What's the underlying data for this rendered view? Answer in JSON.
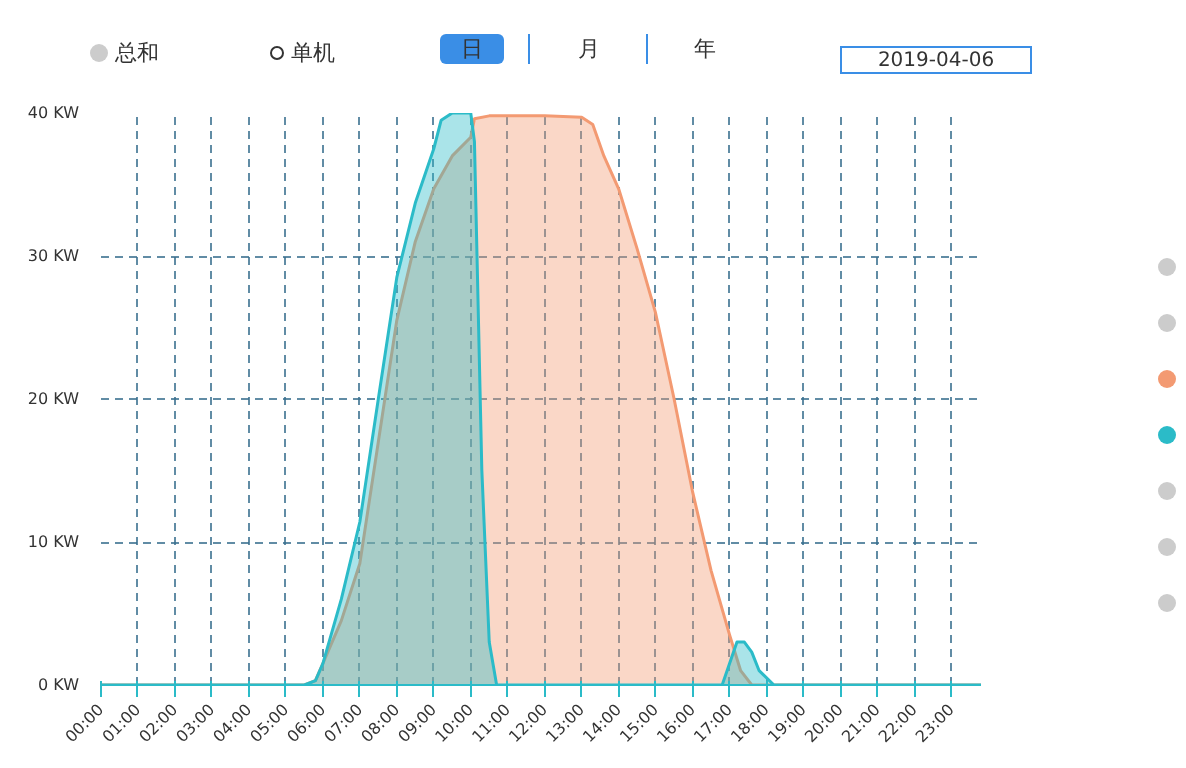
{
  "chart_data": {
    "type": "area",
    "annotations": [
      "总和",
      "单机",
      "日",
      "月",
      "年",
      "2019-04-06"
    ],
    "xlim": [
      0,
      23.8
    ],
    "ylim": [
      0,
      40
    ],
    "xticks": [
      {
        "value": 0,
        "label": "00:00"
      },
      {
        "value": 1,
        "label": "01:00"
      },
      {
        "value": 2,
        "label": "02:00"
      },
      {
        "value": 3,
        "label": "03:00"
      },
      {
        "value": 4,
        "label": "04:00"
      },
      {
        "value": 5,
        "label": "05:00"
      },
      {
        "value": 6,
        "label": "06:00"
      },
      {
        "value": 7,
        "label": "07:00"
      },
      {
        "value": 8,
        "label": "08:00"
      },
      {
        "value": 9,
        "label": "09:00"
      },
      {
        "value": 10,
        "label": "10:00"
      },
      {
        "value": 11,
        "label": "11:00"
      },
      {
        "value": 12,
        "label": "12:00"
      },
      {
        "value": 13,
        "label": "13:00"
      },
      {
        "value": 14,
        "label": "14:00"
      },
      {
        "value": 15,
        "label": "15:00"
      },
      {
        "value": 16,
        "label": "16:00"
      },
      {
        "value": 17,
        "label": "17:00"
      },
      {
        "value": 18,
        "label": "18:00"
      },
      {
        "value": 19,
        "label": "19:00"
      },
      {
        "value": 20,
        "label": "20:00"
      },
      {
        "value": 21,
        "label": "21:00"
      },
      {
        "value": 22,
        "label": "22:00"
      },
      {
        "value": 23,
        "label": "23:00"
      }
    ],
    "yticks": [
      {
        "value": 0,
        "label": "0 KW"
      },
      {
        "value": 10,
        "label": "10 KW"
      },
      {
        "value": 20,
        "label": "20 KW"
      },
      {
        "value": 30,
        "label": "30 KW"
      },
      {
        "value": 40,
        "label": "40 KW"
      }
    ],
    "grid": true,
    "series": [
      {
        "color": "#f39a72",
        "x": [
          0,
          5.5,
          5.8,
          6,
          6.5,
          7,
          7.5,
          8,
          8.5,
          9,
          9.5,
          10,
          10.1,
          10.5,
          11,
          12,
          13,
          13.3,
          13.6,
          14,
          14.5,
          15,
          15.5,
          16,
          16.5,
          17,
          17.3,
          17.6,
          18,
          23.8
        ],
        "values": [
          0,
          0,
          0.3,
          1.5,
          4.5,
          8.5,
          17,
          25.5,
          31,
          34.7,
          37,
          38.3,
          39.6,
          39.8,
          39.8,
          39.8,
          39.7,
          39.2,
          37,
          34.7,
          30.5,
          26,
          20,
          13.5,
          8,
          3.5,
          1,
          0,
          0,
          0
        ]
      },
      {
        "color": "#2bbbc8",
        "x": [
          0,
          5.5,
          5.8,
          6,
          6.5,
          7,
          7.5,
          8,
          8.5,
          9,
          9.2,
          9.5,
          10,
          10.1,
          10.3,
          10.5,
          10.7,
          16.8,
          17,
          17.2,
          17.4,
          17.6,
          17.8,
          18.2,
          23.8
        ],
        "values": [
          0,
          0,
          0.3,
          1.5,
          6,
          11.4,
          20,
          28.5,
          33.7,
          37.5,
          39.5,
          40,
          40,
          38,
          15,
          3,
          0,
          0,
          1.5,
          3,
          3,
          2.3,
          1,
          0,
          0
        ]
      }
    ]
  }
}
